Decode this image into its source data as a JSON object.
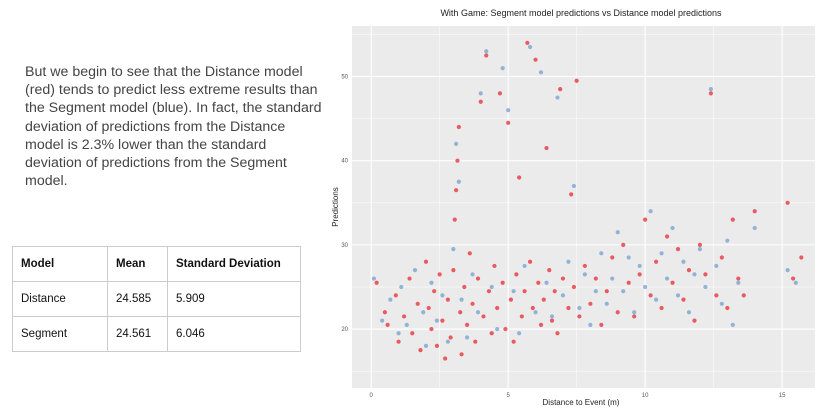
{
  "slide": {
    "body_text": "But we begin to see that the Distance model (red) tends to predict less extreme results than the Segment model (blue).  In fact, the standard deviation of predictions from the Distance model is 2.3% lower than the standard deviation of predictions from the Segment model."
  },
  "table": {
    "headers": [
      "Model",
      "Mean",
      "Standard Deviation"
    ],
    "rows": [
      [
        "Distance",
        "24.585",
        "5.909"
      ],
      [
        "Segment",
        "24.561",
        "6.046"
      ]
    ]
  },
  "colors": {
    "distance": "#e8212b",
    "segment": "#6e9ccc",
    "panel": "#ebebeb",
    "grid": "#ffffff"
  },
  "chart_data": {
    "type": "scatter",
    "title": "With Game: Segment model predictions vs Distance model predictions",
    "xlabel": "Distance to Event (m)",
    "ylabel": "Predictions",
    "xlim": [
      -0.7,
      16.2
    ],
    "ylim": [
      13,
      56
    ],
    "x_ticks": [
      0,
      5,
      10,
      15
    ],
    "y_ticks": [
      20,
      30,
      40,
      50
    ],
    "grid": true,
    "legend": "none",
    "series": [
      {
        "color": "#e8212b",
        "points": [
          [
            0.2,
            25.5
          ],
          [
            0.5,
            22.0
          ],
          [
            0.6,
            20.5
          ],
          [
            0.9,
            24.0
          ],
          [
            1.0,
            18.5
          ],
          [
            1.2,
            21.5
          ],
          [
            1.4,
            26.0
          ],
          [
            1.5,
            19.5
          ],
          [
            1.7,
            23.0
          ],
          [
            1.8,
            17.5
          ],
          [
            2.0,
            28.0
          ],
          [
            2.1,
            22.5
          ],
          [
            2.2,
            20.0
          ],
          [
            2.3,
            24.5
          ],
          [
            2.4,
            18.0
          ],
          [
            2.5,
            26.5
          ],
          [
            2.6,
            21.0
          ],
          [
            2.7,
            16.5
          ],
          [
            2.8,
            23.5
          ],
          [
            2.9,
            19.0
          ],
          [
            3.0,
            27.0
          ],
          [
            3.05,
            33.0
          ],
          [
            3.1,
            36.5
          ],
          [
            3.15,
            40.0
          ],
          [
            3.2,
            44.0
          ],
          [
            3.25,
            22.0
          ],
          [
            3.3,
            17.0
          ],
          [
            3.4,
            25.0
          ],
          [
            3.5,
            20.5
          ],
          [
            3.6,
            29.0
          ],
          [
            3.7,
            23.0
          ],
          [
            3.8,
            18.5
          ],
          [
            3.9,
            26.0
          ],
          [
            4.0,
            47.0
          ],
          [
            4.1,
            21.5
          ],
          [
            4.2,
            52.5
          ],
          [
            4.3,
            24.5
          ],
          [
            4.4,
            19.5
          ],
          [
            4.5,
            27.5
          ],
          [
            4.6,
            22.5
          ],
          [
            4.7,
            48.0
          ],
          [
            4.8,
            25.5
          ],
          [
            4.9,
            20.0
          ],
          [
            5.0,
            44.5
          ],
          [
            5.1,
            23.5
          ],
          [
            5.2,
            18.5
          ],
          [
            5.3,
            26.5
          ],
          [
            5.4,
            38.0
          ],
          [
            5.5,
            21.5
          ],
          [
            5.6,
            24.5
          ],
          [
            5.7,
            54.0
          ],
          [
            5.8,
            28.0
          ],
          [
            5.9,
            22.5
          ],
          [
            6.0,
            52.0
          ],
          [
            6.1,
            25.5
          ],
          [
            6.2,
            20.5
          ],
          [
            6.3,
            23.5
          ],
          [
            6.4,
            41.5
          ],
          [
            6.5,
            27.0
          ],
          [
            6.6,
            21.0
          ],
          [
            6.7,
            24.5
          ],
          [
            6.8,
            19.5
          ],
          [
            6.9,
            48.5
          ],
          [
            7.0,
            26.0
          ],
          [
            7.2,
            22.5
          ],
          [
            7.3,
            36.0
          ],
          [
            7.4,
            25.0
          ],
          [
            7.5,
            49.5
          ],
          [
            7.6,
            21.5
          ],
          [
            7.8,
            27.5
          ],
          [
            8.0,
            23.0
          ],
          [
            8.2,
            26.0
          ],
          [
            8.4,
            20.5
          ],
          [
            8.6,
            24.5
          ],
          [
            8.8,
            28.5
          ],
          [
            9.0,
            22.0
          ],
          [
            9.2,
            30.0
          ],
          [
            9.4,
            25.5
          ],
          [
            9.6,
            21.5
          ],
          [
            9.8,
            26.5
          ],
          [
            10.0,
            33.0
          ],
          [
            10.2,
            24.0
          ],
          [
            10.4,
            28.0
          ],
          [
            10.6,
            22.5
          ],
          [
            10.8,
            31.0
          ],
          [
            11.0,
            25.5
          ],
          [
            11.2,
            29.5
          ],
          [
            11.4,
            23.5
          ],
          [
            11.6,
            27.0
          ],
          [
            11.8,
            21.0
          ],
          [
            12.0,
            30.0
          ],
          [
            12.2,
            26.5
          ],
          [
            12.4,
            48.0
          ],
          [
            12.6,
            24.0
          ],
          [
            12.8,
            28.5
          ],
          [
            13.0,
            22.5
          ],
          [
            13.2,
            33.0
          ],
          [
            13.4,
            26.0
          ],
          [
            13.6,
            24.0
          ],
          [
            14.0,
            34.0
          ],
          [
            15.2,
            35.0
          ],
          [
            15.4,
            26.0
          ],
          [
            15.7,
            28.5
          ]
        ]
      },
      {
        "color": "#6e9ccc",
        "points": [
          [
            0.1,
            26.0
          ],
          [
            0.4,
            21.0
          ],
          [
            0.7,
            23.5
          ],
          [
            1.0,
            19.5
          ],
          [
            1.1,
            25.0
          ],
          [
            1.3,
            20.5
          ],
          [
            1.6,
            27.0
          ],
          [
            1.9,
            22.0
          ],
          [
            2.0,
            18.0
          ],
          [
            2.2,
            25.5
          ],
          [
            2.4,
            21.0
          ],
          [
            2.6,
            24.0
          ],
          [
            2.8,
            18.5
          ],
          [
            3.0,
            29.5
          ],
          [
            3.1,
            42.0
          ],
          [
            3.2,
            37.5
          ],
          [
            3.3,
            23.5
          ],
          [
            3.5,
            19.0
          ],
          [
            3.7,
            26.5
          ],
          [
            3.9,
            22.0
          ],
          [
            4.0,
            48.0
          ],
          [
            4.2,
            53.0
          ],
          [
            4.4,
            25.0
          ],
          [
            4.6,
            20.0
          ],
          [
            4.8,
            51.0
          ],
          [
            5.0,
            46.0
          ],
          [
            5.2,
            24.5
          ],
          [
            5.4,
            19.5
          ],
          [
            5.6,
            27.5
          ],
          [
            5.8,
            53.5
          ],
          [
            6.0,
            22.0
          ],
          [
            6.2,
            50.5
          ],
          [
            6.4,
            25.5
          ],
          [
            6.6,
            21.5
          ],
          [
            6.8,
            47.5
          ],
          [
            7.0,
            24.0
          ],
          [
            7.2,
            28.0
          ],
          [
            7.4,
            37.0
          ],
          [
            7.6,
            22.5
          ],
          [
            7.8,
            26.5
          ],
          [
            8.0,
            20.5
          ],
          [
            8.2,
            24.5
          ],
          [
            8.4,
            29.0
          ],
          [
            8.6,
            23.0
          ],
          [
            8.8,
            26.0
          ],
          [
            9.0,
            31.5
          ],
          [
            9.2,
            24.5
          ],
          [
            9.4,
            28.5
          ],
          [
            9.6,
            22.0
          ],
          [
            9.8,
            27.5
          ],
          [
            10.0,
            25.0
          ],
          [
            10.2,
            34.0
          ],
          [
            10.4,
            23.5
          ],
          [
            10.6,
            29.0
          ],
          [
            10.8,
            26.0
          ],
          [
            11.0,
            32.0
          ],
          [
            11.2,
            24.0
          ],
          [
            11.4,
            28.0
          ],
          [
            11.6,
            22.0
          ],
          [
            11.8,
            26.5
          ],
          [
            12.0,
            29.5
          ],
          [
            12.2,
            25.0
          ],
          [
            12.4,
            48.5
          ],
          [
            12.6,
            27.5
          ],
          [
            12.8,
            23.0
          ],
          [
            13.0,
            30.5
          ],
          [
            13.2,
            20.5
          ],
          [
            13.4,
            25.5
          ],
          [
            14.0,
            32.0
          ],
          [
            15.2,
            27.0
          ],
          [
            15.5,
            25.5
          ]
        ]
      }
    ]
  }
}
